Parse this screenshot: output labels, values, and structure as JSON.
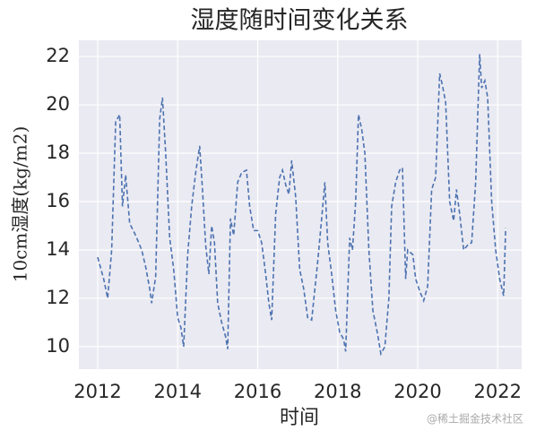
{
  "chart_data": {
    "type": "line",
    "title": "湿度随时间变化关系",
    "x_label": "时间",
    "y_label": "10cm湿度(kg/m2)",
    "watermark": "@稀土掘金技术社区",
    "x": [
      2012.0,
      2012.15,
      2012.25,
      2012.35,
      2012.45,
      2012.55,
      2012.62,
      2012.7,
      2012.8,
      2012.95,
      2013.1,
      2013.2,
      2013.3,
      2013.35,
      2013.45,
      2013.55,
      2013.62,
      2013.7,
      2013.8,
      2013.9,
      2014.0,
      2014.08,
      2014.15,
      2014.25,
      2014.35,
      2014.45,
      2014.55,
      2014.62,
      2014.7,
      2014.78,
      2014.85,
      2014.92,
      2015.0,
      2015.1,
      2015.2,
      2015.25,
      2015.32,
      2015.4,
      2015.5,
      2015.6,
      2015.72,
      2015.8,
      2015.9,
      2016.0,
      2016.1,
      2016.2,
      2016.28,
      2016.35,
      2016.45,
      2016.55,
      2016.62,
      2016.7,
      2016.78,
      2016.85,
      2016.95,
      2017.05,
      2017.15,
      2017.25,
      2017.35,
      2017.5,
      2017.6,
      2017.68,
      2017.75,
      2017.85,
      2017.95,
      2018.05,
      2018.15,
      2018.2,
      2018.3,
      2018.37,
      2018.45,
      2018.52,
      2018.6,
      2018.68,
      2018.78,
      2018.88,
      2019.0,
      2019.08,
      2019.18,
      2019.28,
      2019.35,
      2019.45,
      2019.55,
      2019.62,
      2019.7,
      2019.75,
      2019.88,
      2019.95,
      2020.05,
      2020.15,
      2020.25,
      2020.35,
      2020.45,
      2020.55,
      2020.62,
      2020.7,
      2020.8,
      2020.9,
      2020.97,
      2021.05,
      2021.15,
      2021.25,
      2021.35,
      2021.45,
      2021.55,
      2021.6,
      2021.68,
      2021.75,
      2021.85,
      2021.95,
      2022.05,
      2022.15,
      2022.2
    ],
    "series": [
      {
        "color": "#4c72b0",
        "values": [
          13.7,
          12.8,
          12.0,
          14.0,
          19.3,
          19.6,
          15.8,
          17.1,
          15.1,
          14.6,
          14.0,
          13.3,
          12.4,
          11.8,
          12.9,
          19.4,
          20.3,
          18.0,
          14.5,
          13.2,
          11.2,
          10.8,
          10.0,
          13.8,
          15.8,
          17.2,
          18.3,
          16.5,
          14.2,
          13.0,
          15.0,
          14.3,
          11.8,
          11.0,
          10.4,
          9.9,
          15.3,
          14.6,
          16.8,
          17.2,
          17.3,
          15.8,
          14.8,
          14.8,
          14.3,
          13.0,
          11.8,
          11.1,
          15.5,
          17.0,
          17.3,
          16.7,
          16.3,
          17.7,
          16.2,
          13.2,
          12.4,
          11.2,
          11.1,
          13.5,
          15.3,
          16.8,
          14.3,
          13.0,
          11.5,
          10.6,
          10.3,
          9.8,
          14.5,
          14.0,
          16.0,
          19.6,
          19.0,
          18.0,
          14.0,
          11.5,
          10.5,
          9.7,
          10.0,
          12.0,
          15.8,
          16.8,
          17.3,
          17.4,
          12.8,
          14.0,
          13.8,
          12.8,
          12.3,
          11.9,
          12.5,
          16.5,
          17.0,
          21.3,
          20.8,
          20.1,
          16.0,
          15.2,
          16.5,
          15.5,
          14.0,
          14.2,
          14.3,
          16.8,
          22.1,
          20.7,
          21.0,
          20.3,
          16.0,
          14.0,
          12.8,
          12.1,
          14.9
        ]
      }
    ],
    "xlim": [
      2011.53,
      2022.6
    ],
    "ylim": [
      9.07,
      22.67
    ],
    "xticks": [
      2012,
      2014,
      2016,
      2018,
      2020,
      2022
    ],
    "yticks": [
      10,
      12,
      14,
      16,
      18,
      20,
      22
    ],
    "grid": true,
    "line_style": "dashed"
  }
}
